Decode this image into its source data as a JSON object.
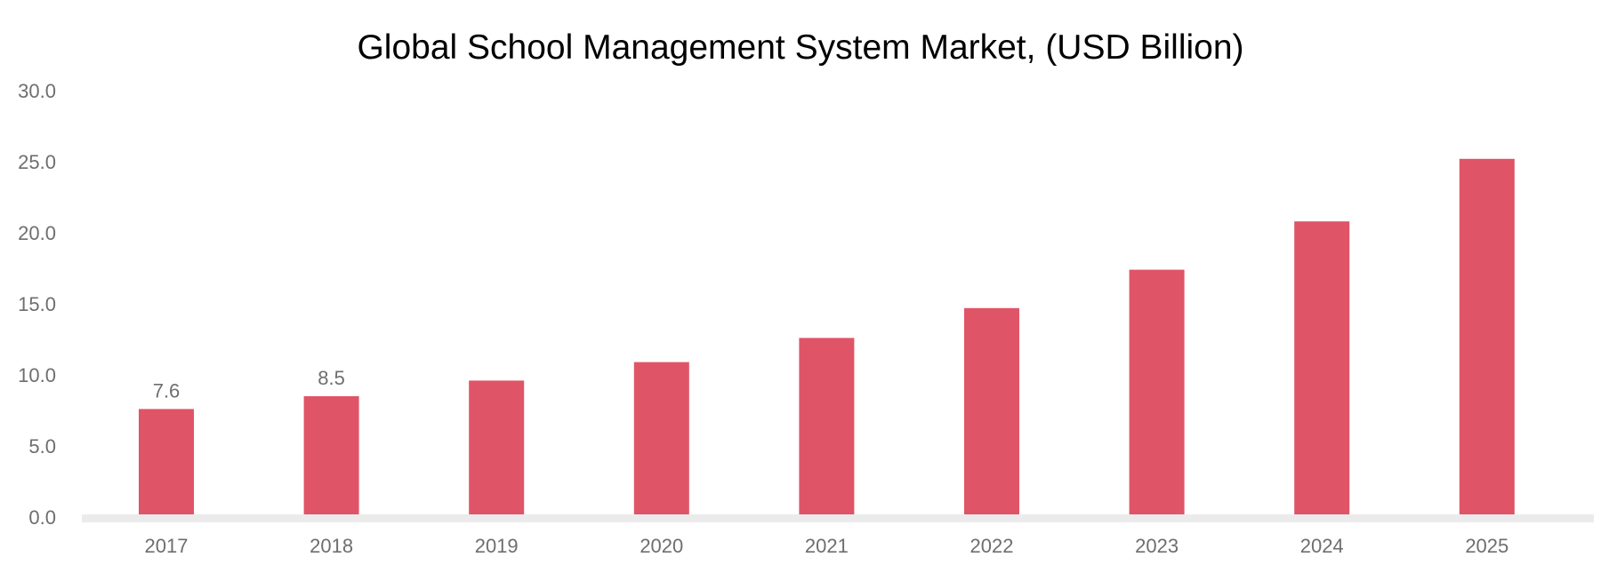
{
  "colors": {
    "bar": "#e05467",
    "baseline": "#ebebeb",
    "tick_text": "#6e6e6e"
  },
  "chart_data": {
    "type": "bar",
    "title": "Global School Management System Market, (USD Billion)",
    "xlabel": "",
    "ylabel": "",
    "categories": [
      "2017",
      "2018",
      "2019",
      "2020",
      "2021",
      "2022",
      "2023",
      "2024",
      "2025"
    ],
    "values": [
      7.6,
      8.5,
      9.6,
      10.9,
      12.6,
      14.7,
      17.4,
      20.8,
      25.2
    ],
    "data_labels": [
      "7.6",
      "8.5",
      "",
      "",
      "",
      "",
      "",
      "",
      ""
    ],
    "ylim": [
      0,
      30
    ],
    "yticks": [
      "0.0",
      "5.0",
      "10.0",
      "15.0",
      "20.0",
      "25.0",
      "30.0"
    ],
    "grid": false,
    "legend": "none"
  }
}
